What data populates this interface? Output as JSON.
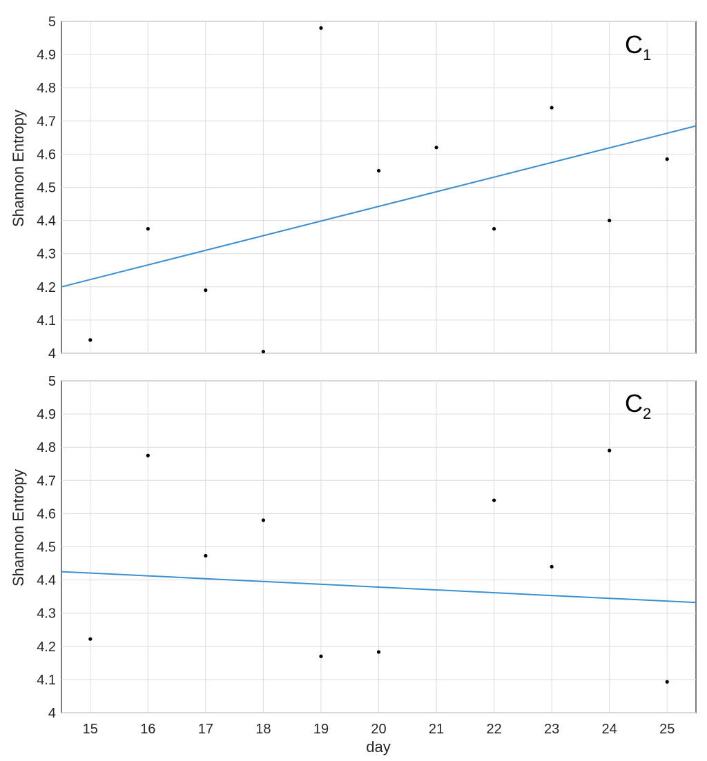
{
  "chart_data": [
    {
      "type": "scatter",
      "panel_label": "C",
      "panel_label_subscript": "1",
      "xlabel": "",
      "ylabel": "Shannon Entropy",
      "xlim": [
        14.5,
        25.5
      ],
      "ylim": [
        4,
        5
      ],
      "xticks": [],
      "yticks": [
        "4",
        "4.1",
        "4.2",
        "4.3",
        "4.4",
        "4.5",
        "4.6",
        "4.7",
        "4.8",
        "4.9",
        "5"
      ],
      "grid": true,
      "points": {
        "x": [
          15,
          16,
          17,
          18,
          19,
          20,
          21,
          22,
          23,
          24,
          25
        ],
        "y": [
          4.04,
          4.375,
          4.19,
          4.005,
          4.98,
          4.55,
          4.62,
          4.375,
          4.74,
          4.4,
          4.585
        ],
        "color": "#000000"
      },
      "fit_line": {
        "x": [
          14.5,
          25.5
        ],
        "y": [
          4.2,
          4.685
        ],
        "color": "#3a8fd0"
      }
    },
    {
      "type": "scatter",
      "panel_label": "C",
      "panel_label_subscript": "2",
      "xlabel": "day",
      "ylabel": "Shannon Entropy",
      "xlim": [
        14.5,
        25.5
      ],
      "ylim": [
        4,
        5
      ],
      "xticks": [
        "15",
        "16",
        "17",
        "18",
        "19",
        "20",
        "21",
        "22",
        "23",
        "24",
        "25"
      ],
      "yticks": [
        "4",
        "4.1",
        "4.2",
        "4.3",
        "4.4",
        "4.5",
        "4.6",
        "4.7",
        "4.8",
        "4.9",
        "5"
      ],
      "grid": true,
      "points": {
        "x": [
          15,
          16,
          17,
          18,
          19,
          20,
          21,
          22,
          23,
          24,
          25
        ],
        "y": [
          4.222,
          4.775,
          4.473,
          4.58,
          4.17,
          4.183,
          null,
          4.64,
          4.44,
          4.79,
          4.093
        ],
        "color": "#000000"
      },
      "fit_line": {
        "x": [
          14.5,
          25.5
        ],
        "y": [
          4.425,
          4.332
        ],
        "color": "#3a8fd0"
      }
    }
  ]
}
